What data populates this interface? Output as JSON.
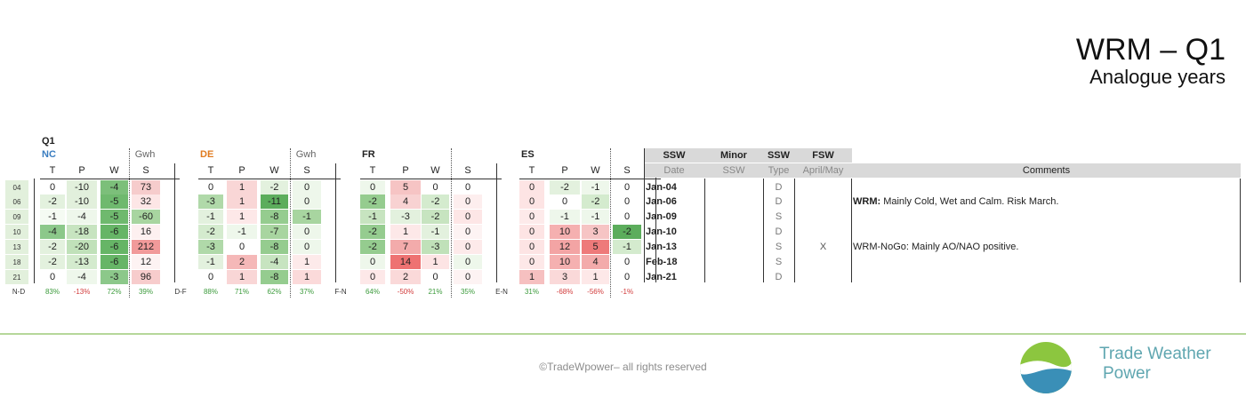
{
  "title": {
    "line1": "WRM – Q1",
    "line2": "Analogue years"
  },
  "table": {
    "quarter": "Q1",
    "years": [
      "04",
      "06",
      "09",
      "10",
      "13",
      "18",
      "21"
    ],
    "groups": [
      {
        "country": "NC",
        "country_color": "#3a7dc0",
        "gwh": "Gwh",
        "cols": [
          "T",
          "P",
          "W",
          "S"
        ],
        "rows": [
          [
            "0",
            "-10",
            "-4",
            "73"
          ],
          [
            "-2",
            "-10",
            "-5",
            "32"
          ],
          [
            "-1",
            "-4",
            "-5",
            "-60"
          ],
          [
            "-4",
            "-18",
            "-6",
            "16"
          ],
          [
            "-2",
            "-20",
            "-6",
            "212"
          ],
          [
            "-2",
            "-13",
            "-6",
            "12"
          ],
          [
            "0",
            "-4",
            "-3",
            "96"
          ]
        ],
        "colors": [
          [
            "#fff",
            "#e2f0dc",
            "#7cbf7a",
            "#f6cccc"
          ],
          [
            "#e3f1de",
            "#e2f0dc",
            "#6fb96e",
            "#fde6e6"
          ],
          [
            "#f5fbf3",
            "#eef7eb",
            "#6fb96e",
            "#a8d5a0"
          ],
          [
            "#8cc88a",
            "#c7e4c0",
            "#66b566",
            "#fdf0f0"
          ],
          [
            "#e3f1de",
            "#c0e1b9",
            "#66b566",
            "#f19a9a"
          ],
          [
            "#e3f1de",
            "#d4ebce",
            "#66b566",
            "#fdf3f3"
          ],
          [
            "#fff",
            "#eef7eb",
            "#8cc88a",
            "#f7cccc"
          ]
        ],
        "footer": [
          "83%",
          "-13%",
          "72%",
          "39%"
        ],
        "footer_colors": [
          "#3c9b3c",
          "#d23c3c",
          "#3c9b3c",
          "#3c9b3c"
        ]
      },
      {
        "country": "DE",
        "country_color": "#e07b1f",
        "gwh": "Gwh",
        "cols": [
          "T",
          "P",
          "W",
          "S"
        ],
        "rows": [
          [
            "0",
            "1",
            "-2",
            "0"
          ],
          [
            "-3",
            "1",
            "-11",
            "0"
          ],
          [
            "-1",
            "1",
            "-8",
            "-1"
          ],
          [
            "-2",
            "-1",
            "-7",
            "0"
          ],
          [
            "-3",
            "0",
            "-8",
            "0"
          ],
          [
            "-1",
            "2",
            "-4",
            "1"
          ],
          [
            "0",
            "1",
            "-8",
            "1"
          ]
        ],
        "colors": [
          [
            "#fff",
            "#f9d6d6",
            "#e3f1de",
            "#eef7eb"
          ],
          [
            "#b0d9a9",
            "#f9d6d6",
            "#5cad5c",
            "#eef7eb"
          ],
          [
            "#e3f1de",
            "#fde8e8",
            "#95cc8f",
            "#a8d5a0"
          ],
          [
            "#d4ebce",
            "#eef7eb",
            "#a8d5a0",
            "#eef7eb"
          ],
          [
            "#b0d9a9",
            "#fff",
            "#95cc8f",
            "#eef7eb"
          ],
          [
            "#e3f1de",
            "#f5b8b8",
            "#c7e4c0",
            "#fdeaea"
          ],
          [
            "#fff",
            "#f9d6d6",
            "#95cc8f",
            "#fbdada"
          ]
        ],
        "footer": [
          "88%",
          "71%",
          "62%",
          "37%"
        ],
        "footer_colors": [
          "#3c9b3c",
          "#3c9b3c",
          "#3c9b3c",
          "#3c9b3c"
        ]
      },
      {
        "country": "FR",
        "country_color": "#222222",
        "gwh": "",
        "cols": [
          "T",
          "P",
          "W",
          "S"
        ],
        "rows": [
          [
            "0",
            "5",
            "0",
            "0"
          ],
          [
            "-2",
            "4",
            "-2",
            "0"
          ],
          [
            "-1",
            "-3",
            "-2",
            "0"
          ],
          [
            "-2",
            "1",
            "-1",
            "0"
          ],
          [
            "-2",
            "7",
            "-3",
            "0"
          ],
          [
            "0",
            "14",
            "1",
            "0"
          ],
          [
            "0",
            "2",
            "0",
            "0"
          ]
        ],
        "colors": [
          [
            "#eef7eb",
            "#f6c4c4",
            "#fff",
            "#fff"
          ],
          [
            "#95cc8f",
            "#f8d2d2",
            "#d4ebce",
            "#fdeeee"
          ],
          [
            "#c7e4c0",
            "#e3f1de",
            "#c7e4c0",
            "#fde6e6"
          ],
          [
            "#95cc8f",
            "#fde8e8",
            "#e3f1de",
            "#fdf3f3"
          ],
          [
            "#95cc8f",
            "#f3abab",
            "#c0e1b9",
            "#fdeaea"
          ],
          [
            "#eef7eb",
            "#ee7272",
            "#fde4e4",
            "#eef7eb"
          ],
          [
            "#fde8e8",
            "#fad9d9",
            "#fff",
            "#fdf3f3"
          ]
        ],
        "footer": [
          "64%",
          "-50%",
          "21%",
          "35%"
        ],
        "footer_colors": [
          "#3c9b3c",
          "#d23c3c",
          "#3c9b3c",
          "#3c9b3c"
        ]
      },
      {
        "country": "ES",
        "country_color": "#222222",
        "gwh": "",
        "cols": [
          "T",
          "P",
          "W",
          "S"
        ],
        "rows": [
          [
            "0",
            "-2",
            "-1",
            "0"
          ],
          [
            "0",
            "0",
            "-2",
            "0"
          ],
          [
            "0",
            "-1",
            "-1",
            "0"
          ],
          [
            "0",
            "10",
            "3",
            "-2"
          ],
          [
            "0",
            "12",
            "5",
            "-1"
          ],
          [
            "0",
            "10",
            "4",
            "0"
          ],
          [
            "1",
            "3",
            "1",
            "0"
          ]
        ],
        "colors": [
          [
            "#fde4e4",
            "#e3f1de",
            "#eef7eb",
            "#fff"
          ],
          [
            "#fde4e4",
            "#fff",
            "#d4ebce",
            "#fff"
          ],
          [
            "#fdeaea",
            "#eef7eb",
            "#eef7eb",
            "#fff"
          ],
          [
            "#fde4e4",
            "#f5b0b0",
            "#f6c4c4",
            "#5cad5c"
          ],
          [
            "#fde4e4",
            "#f3a4a4",
            "#ee7a7a",
            "#d4ebce"
          ],
          [
            "#fde8e8",
            "#f5b0b0",
            "#f3abab",
            "#fff"
          ],
          [
            "#f6c0c0",
            "#fad9d9",
            "#fde8e8",
            "#fff"
          ]
        ],
        "footer": [
          "31%",
          "-68%",
          "-56%",
          "-1%"
        ],
        "footer_colors": [
          "#3c9b3c",
          "#d23c3c",
          "#d23c3c",
          "#d23c3c"
        ]
      }
    ],
    "footer_labels": [
      "N-D",
      "D-F",
      "F-N",
      "E-N"
    ],
    "ssw": {
      "headers": [
        "SSW",
        "Minor",
        "SSW",
        "FSW"
      ],
      "subheaders": [
        "Date",
        "SSW",
        "Type",
        "April/May"
      ],
      "comments_header": "Comments",
      "rows": [
        {
          "date": "Jan-04",
          "minor": "",
          "type": "D",
          "fsw": "",
          "comment_bold": "",
          "comment": ""
        },
        {
          "date": "Jan-06",
          "minor": "",
          "type": "D",
          "fsw": "",
          "comment_bold": "WRM:",
          "comment": " Mainly Cold, Wet and Calm. Risk March."
        },
        {
          "date": "Jan-09",
          "minor": "",
          "type": "S",
          "fsw": "",
          "comment_bold": "",
          "comment": ""
        },
        {
          "date": "Jan-10",
          "minor": "",
          "type": "D",
          "fsw": "",
          "comment_bold": "",
          "comment": ""
        },
        {
          "date": "Jan-13",
          "minor": "",
          "type": "S",
          "fsw": "X",
          "comment_bold": "",
          "comment": "WRM-NoGo: Mainly AO/NAO positive."
        },
        {
          "date": "Feb-18",
          "minor": "",
          "type": "S",
          "fsw": "",
          "comment_bold": "",
          "comment": ""
        },
        {
          "date": "Jan-21",
          "minor": "",
          "type": "D",
          "fsw": "",
          "comment_bold": "",
          "comment": ""
        }
      ]
    }
  },
  "footer": {
    "copyright": "©TradeWpower– all rights reserved",
    "brand_line1": "Trade Weather",
    "brand_line2": "Power",
    "brand_color": "#5fa6b0",
    "logo_icon": "wave-globe-logo"
  }
}
